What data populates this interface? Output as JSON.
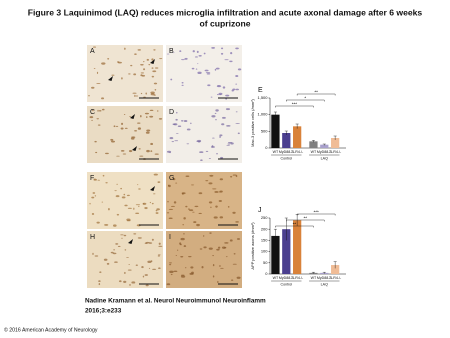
{
  "title": [
    "Figure 3 Laquinimod (LAQ) reduces microglia infiltration and acute axonal damage after 6 weeks",
    "of cuprizone"
  ],
  "panels": [
    "A",
    "B",
    "C",
    "D",
    "F",
    "G",
    "H",
    "I"
  ],
  "chart_data": [
    {
      "type": "bar",
      "panel": "E",
      "y_label": "Mac-3 positive cells (/mm²)",
      "categories": [
        "WT",
        "MyD88-/-",
        "TLR4-/-",
        "WT",
        "MyD88-/-",
        "TLR4-/-"
      ],
      "groups": [
        "Control",
        "LAQ"
      ],
      "values": [
        1000,
        450,
        650,
        200,
        100,
        300
      ],
      "errors": [
        80,
        60,
        70,
        30,
        20,
        60
      ],
      "colors": [
        "#111111",
        "#4b3f8f",
        "#d9823a",
        "#808080",
        "#a8a0cc",
        "#f0bc96"
      ],
      "ylim": [
        0,
        1500
      ],
      "yticks": [
        0,
        500,
        {
          "value": 1000,
          "label": "1,000"
        },
        {
          "value": 1500,
          "label": "1,500"
        }
      ],
      "annotations": [
        "***",
        "*",
        "**"
      ]
    },
    {
      "type": "bar",
      "panel": "J",
      "y_label": "APP positive axons (/mm²)",
      "categories": [
        "WT",
        "MyD88-/-",
        "TLR4-/-",
        "WT",
        "MyD88-/-",
        "TLR4-/-"
      ],
      "groups": [
        "Control",
        "LAQ"
      ],
      "values": [
        170,
        200,
        240,
        5,
        5,
        40
      ],
      "errors": [
        30,
        50,
        25,
        3,
        3,
        15
      ],
      "colors": [
        "#111111",
        "#4b3f8f",
        "#d9823a",
        "#808080",
        "#a8a0cc",
        "#f0bc96"
      ],
      "ylim": [
        0,
        250
      ],
      "yticks": [
        0,
        50,
        100,
        150,
        200,
        250
      ],
      "annotations": [
        "**",
        "**",
        "***"
      ]
    }
  ],
  "caption": [
    "Nadine Kramann et al. Neurol Neuroimmunol Neuroinflamm",
    "2016;3:e233"
  ],
  "copyright": "© 2016 American Academy of Neurology"
}
